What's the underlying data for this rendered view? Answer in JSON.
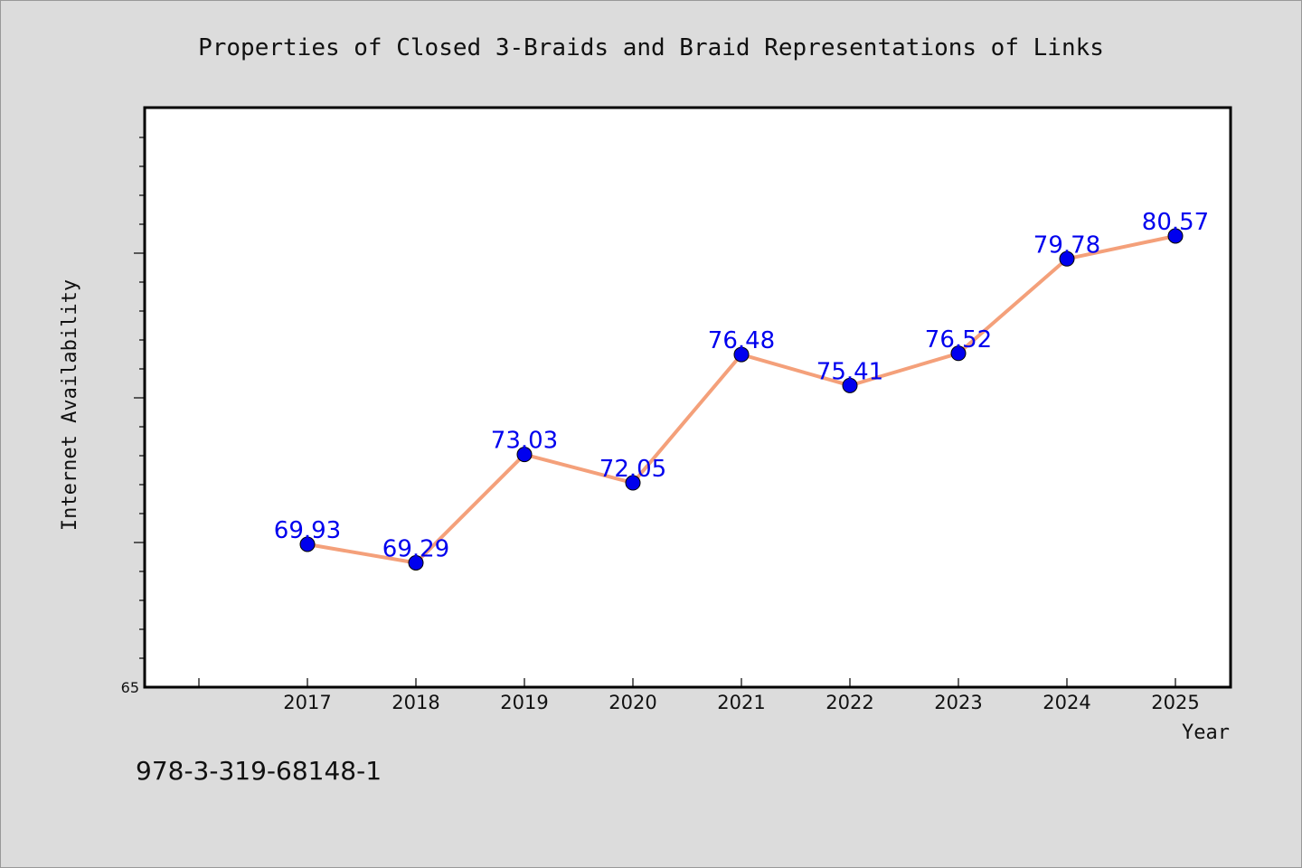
{
  "chart_data": {
    "type": "line",
    "title": "Properties of Closed 3-Braids and Braid Representations of Links",
    "xlabel": "Year",
    "ylabel": "Internet Availability",
    "x": [
      "2017",
      "2018",
      "2019",
      "2020",
      "2021",
      "2022",
      "2023",
      "2024",
      "2025"
    ],
    "series": [
      {
        "values": [
          69.93,
          69.29,
          73.03,
          72.05,
          76.48,
          75.41,
          76.52,
          79.78,
          80.57
        ],
        "labels": [
          "69.93",
          "69.29",
          "73.03",
          "72.05",
          "76.48",
          "75.41",
          "76.52",
          "79.78",
          "80.57"
        ]
      }
    ],
    "y_tick_labels": [
      "65"
    ],
    "ylim": [
      65,
      85
    ],
    "grid": false,
    "legend": "none",
    "line_color": "#f4a07a",
    "marker_color": "#0000ee",
    "label_color": "#0000ee"
  },
  "footer": {
    "isbn": "978-3-319-68148-1"
  }
}
